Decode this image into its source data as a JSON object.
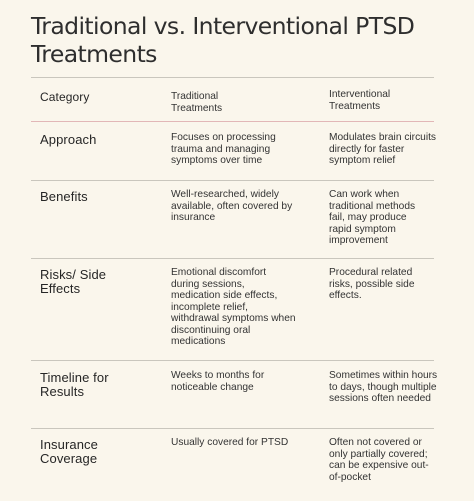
{
  "title": "Traditional vs. Interventional PTSD Treatments",
  "headers": {
    "category": "Category",
    "traditional": "Traditional Treatments",
    "interventional": "Interventional Treatments"
  },
  "rows": [
    {
      "category": "Approach",
      "traditional": "Focuses on processing trauma and managing symptoms over time",
      "interventional": "Modulates brain circuits directly for faster symptom relief"
    },
    {
      "category": "Benefits",
      "traditional": "Well-researched, widely available, often covered by insurance",
      "interventional": "Can work when traditional methods fail, may produce rapid symptom improvement"
    },
    {
      "category": "Risks/ Side Effects",
      "traditional": "Emotional discomfort during sessions, medication side effects, incomplete relief, withdrawal symptoms when discontinuing oral medications",
      "interventional": "Procedural related risks, possible side effects."
    },
    {
      "category": "Timeline for Results",
      "traditional": "Weeks to months for noticeable change",
      "interventional": "Sometimes within hours to days, though multiple sessions often needed"
    },
    {
      "category": "Insurance Coverage",
      "traditional": "Usually covered for PTSD",
      "interventional": "Often not covered or only partially covered; can be expensive out-of-pocket"
    }
  ]
}
